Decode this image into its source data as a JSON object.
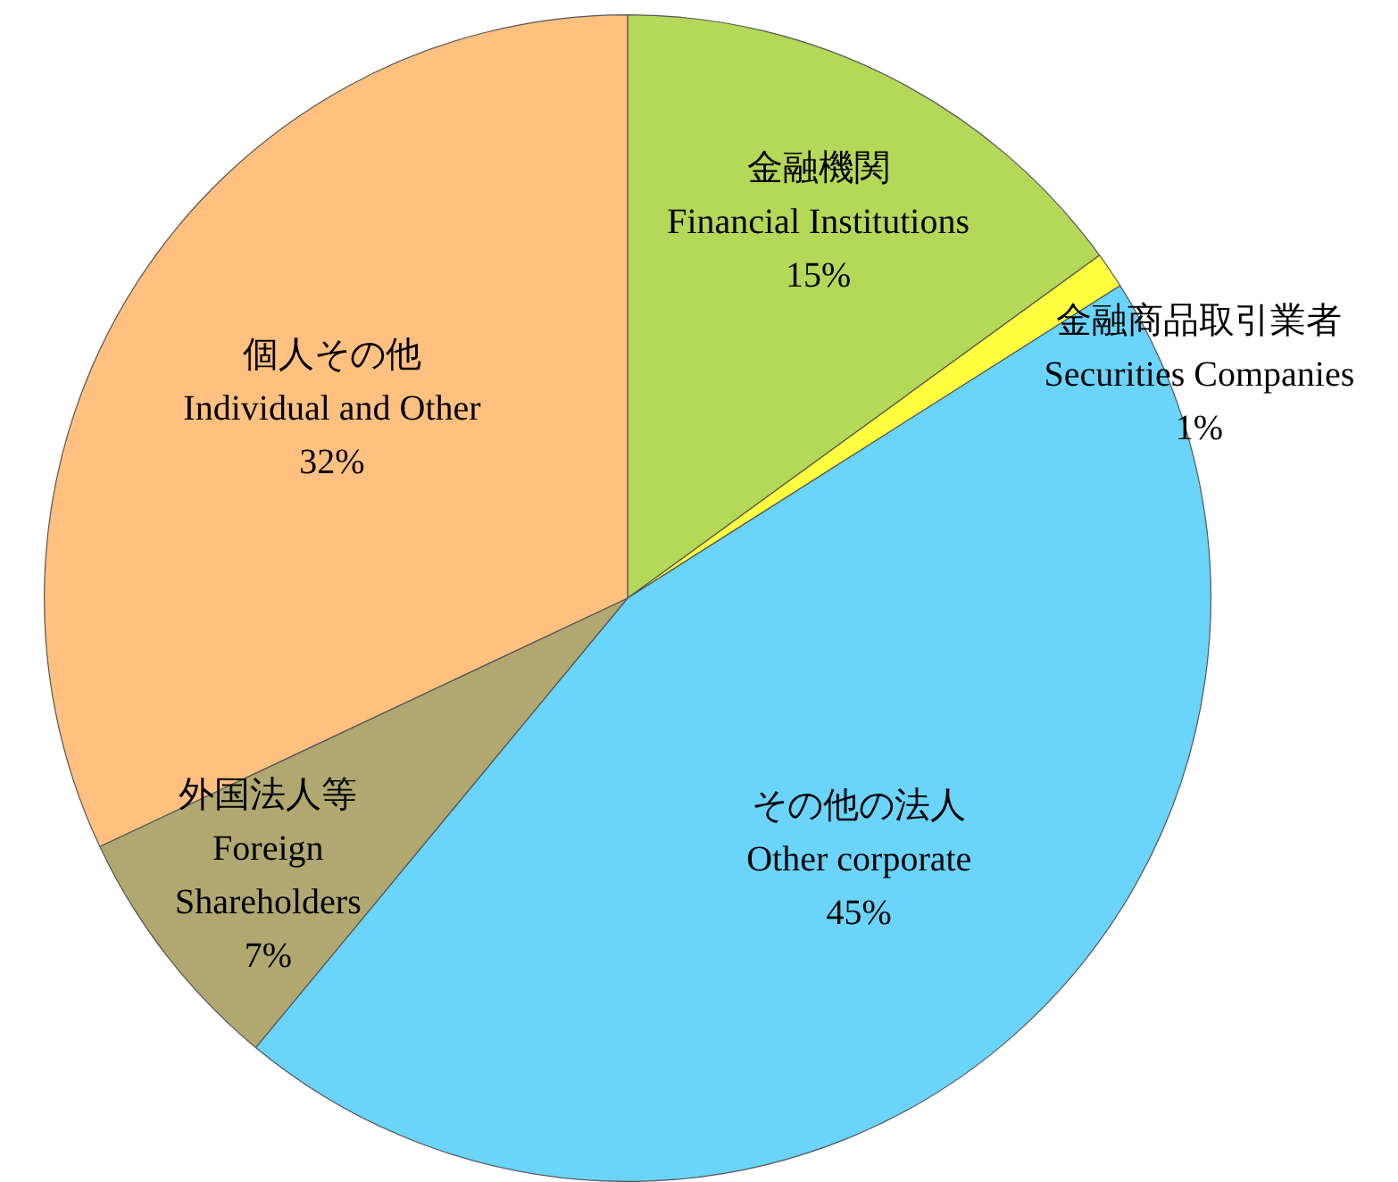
{
  "chart_data": {
    "type": "pie",
    "categories": [
      "金融機関\nFinancial Institutions",
      "金融商品取引業者\nSecurities Companies",
      "その他の法人\nOther corporate",
      "外国法人等\nForeign\nShareholders",
      "個人その他\nIndividual and Other"
    ],
    "values": [
      15,
      1,
      45,
      7,
      32
    ],
    "value_labels": [
      "15%",
      "1%",
      "45%",
      "7%",
      "32%"
    ],
    "colors": [
      "#b4d858",
      "#ffff40",
      "#6ad4fa",
      "#b0a870",
      "#ffc080"
    ],
    "legend": false
  }
}
